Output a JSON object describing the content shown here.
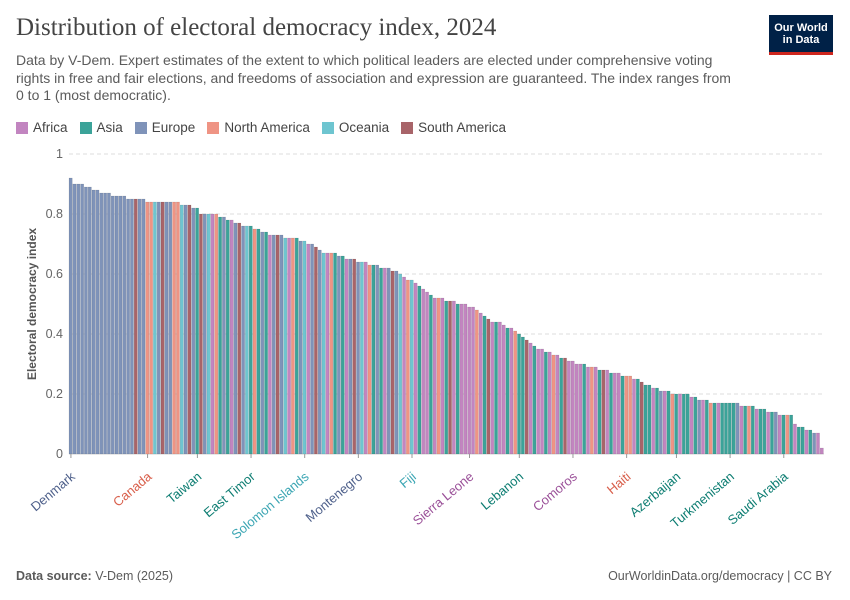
{
  "header": {
    "title": "Distribution of electoral democracy index, 2024",
    "subtitle": "Data by V-Dem. Expert estimates of the extent to which political leaders are elected under comprehensive voting rights in free and fair elections, and freedoms of association and expression are guaranteed. The index ranges from 0 to 1 (most democratic).",
    "logo_line1": "Our World",
    "logo_line2": "in Data"
  },
  "legend": [
    {
      "name": "Africa",
      "color": "#c285c0"
    },
    {
      "name": "Asia",
      "color": "#3ba399"
    },
    {
      "name": "Europe",
      "color": "#7f93b9"
    },
    {
      "name": "North America",
      "color": "#ef9484"
    },
    {
      "name": "Oceania",
      "color": "#6ec5d0"
    },
    {
      "name": "South America",
      "color": "#a86469"
    }
  ],
  "footer": {
    "source_label": "Data source:",
    "source_value": "V-Dem (2025)",
    "right": "OurWorldinData.org/democracy | CC BY"
  },
  "chart_data": {
    "type": "bar",
    "ylabel": "Electoral democracy index",
    "ylim": [
      0,
      1
    ],
    "yticks": [
      0,
      0.2,
      0.4,
      0.6,
      0.8,
      1
    ],
    "grid": true,
    "legend_position": "top-left",
    "colors": {
      "Africa": "#c285c0",
      "Asia": "#3ba399",
      "Europe": "#7f93b9",
      "North America": "#ef9484",
      "Oceania": "#6ec5d0",
      "South America": "#a86469"
    },
    "labeled_countries": [
      {
        "name": "Denmark",
        "region": "Europe",
        "rank": 0,
        "value": 0.92
      },
      {
        "name": "Canada",
        "region": "North America",
        "rank": 20,
        "value": 0.84
      },
      {
        "name": "Taiwan",
        "region": "Asia",
        "rank": 33,
        "value": 0.8
      },
      {
        "name": "East Timor",
        "region": "Asia",
        "rank": 47,
        "value": 0.73
      },
      {
        "name": "Solomon Islands",
        "region": "Oceania",
        "rank": 61,
        "value": 0.67
      },
      {
        "name": "Montenegro",
        "region": "Europe",
        "rank": 75,
        "value": 0.62
      },
      {
        "name": "Fiji",
        "region": "Oceania",
        "rank": 89,
        "value": 0.52
      },
      {
        "name": "Sierra Leone",
        "region": "Africa",
        "rank": 104,
        "value": 0.44
      },
      {
        "name": "Lebanon",
        "region": "Asia",
        "rank": 117,
        "value": 0.35
      },
      {
        "name": "Comoros",
        "region": "Africa",
        "rank": 131,
        "value": 0.28
      },
      {
        "name": "Haiti",
        "region": "North America",
        "rank": 145,
        "value": 0.22
      },
      {
        "name": "Azerbaijan",
        "region": "Asia",
        "rank": 158,
        "value": 0.17
      },
      {
        "name": "Turkmenistan",
        "region": "Asia",
        "rank": 172,
        "value": 0.15
      },
      {
        "name": "Saudi Arabia",
        "region": "Asia",
        "rank": 186,
        "value": 0.02
      }
    ],
    "series": [
      {
        "region": "Europe",
        "values": [
          0.92,
          0.9,
          0.9,
          0.9,
          0.89,
          0.89,
          0.88,
          0.88,
          0.87,
          0.87,
          0.87,
          0.86,
          0.86,
          0.86,
          0.86,
          0.85,
          0.85,
          0.85,
          0.85,
          0.85,
          0.84,
          0.84,
          0.84,
          0.84,
          0.84,
          0.84,
          0.84,
          0.84,
          0.84,
          0.83,
          0.83,
          0.83,
          0.82,
          0.82
        ]
      },
      {
        "region": "Mixed",
        "values": [
          0.8,
          0.8,
          0.8,
          0.8,
          0.8,
          0.79,
          0.79,
          0.78,
          0.78,
          0.77,
          0.77,
          0.76,
          0.76,
          0.76,
          0.75,
          0.75,
          0.74,
          0.74,
          0.73,
          0.73,
          0.73,
          0.73,
          0.72,
          0.72,
          0.72,
          0.72,
          0.71,
          0.71,
          0.7,
          0.7,
          0.69,
          0.68,
          0.67,
          0.67,
          0.67,
          0.67,
          0.66,
          0.66,
          0.65,
          0.65,
          0.65,
          0.64,
          0.64,
          0.64,
          0.63,
          0.63,
          0.63,
          0.62,
          0.62,
          0.62,
          0.61,
          0.61,
          0.6,
          0.59,
          0.58,
          0.58,
          0.57,
          0.56,
          0.55,
          0.54,
          0.53,
          0.52,
          0.52,
          0.52,
          0.51,
          0.51,
          0.51,
          0.5,
          0.5,
          0.5,
          0.49,
          0.49,
          0.48,
          0.47,
          0.46,
          0.45,
          0.44,
          0.44,
          0.44,
          0.43,
          0.42,
          0.42,
          0.41,
          0.4,
          0.39,
          0.38,
          0.37,
          0.36,
          0.35,
          0.35,
          0.34,
          0.34,
          0.33,
          0.33,
          0.32,
          0.32,
          0.31,
          0.31,
          0.3,
          0.3,
          0.3,
          0.29,
          0.29,
          0.29,
          0.28,
          0.28,
          0.28,
          0.27,
          0.27,
          0.27,
          0.26,
          0.26,
          0.26,
          0.25,
          0.25,
          0.24,
          0.23,
          0.23,
          0.22,
          0.22,
          0.21,
          0.21,
          0.21,
          0.2,
          0.2,
          0.2,
          0.2,
          0.2,
          0.19,
          0.19,
          0.18,
          0.18,
          0.18,
          0.17,
          0.17,
          0.17,
          0.17,
          0.17,
          0.17,
          0.17,
          0.17,
          0.16,
          0.16,
          0.16,
          0.16,
          0.15,
          0.15,
          0.15,
          0.14,
          0.14,
          0.14,
          0.13,
          0.13,
          0.13,
          0.13,
          0.1,
          0.09,
          0.09,
          0.08,
          0.08,
          0.07,
          0.07,
          0.02
        ]
      }
    ]
  }
}
